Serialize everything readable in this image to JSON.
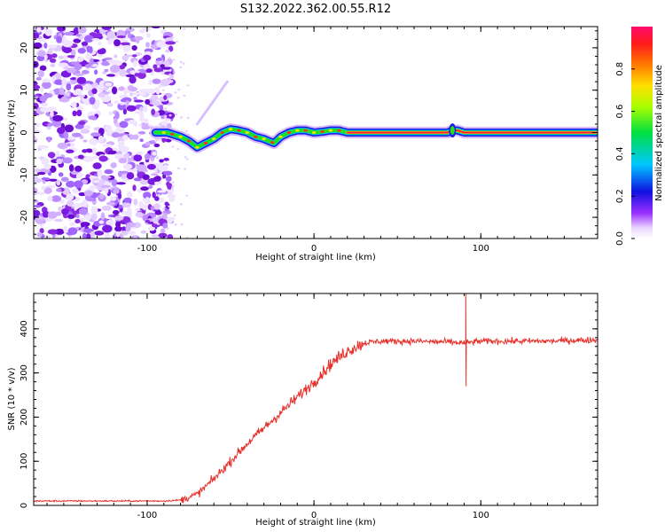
{
  "title": "S132.2022.362.00.55.R12",
  "colors": {
    "snr_line": "#e8302a",
    "scatter": "#8a2be2",
    "ridge_core": "#ff1a3c",
    "ridge_mid": "#22e01a",
    "ridge_edge": "#1a1ae0"
  },
  "chart_data": [
    {
      "type": "heatmap",
      "xlabel": "Height of straight line (km)",
      "ylabel": "Frequency (Hz)",
      "xlim": [
        -168,
        170
      ],
      "ylim": [
        -25,
        25
      ],
      "xticks": [
        -100,
        0,
        100
      ],
      "xtick_labels": [
        "-100",
        "0",
        "100"
      ],
      "yticks": [
        -20,
        -10,
        0,
        10,
        20
      ],
      "ytick_labels": [
        "-20",
        "-10",
        "0",
        "10",
        "20"
      ],
      "colorbar": {
        "label": "Normalized spectral amplitude",
        "range": [
          0,
          1
        ],
        "ticks": [
          0.0,
          0.2,
          0.4,
          0.6,
          0.8
        ],
        "tick_labels": [
          "0.0",
          "0.2",
          "0.4",
          "0.6",
          "0.8"
        ]
      },
      "ridge": {
        "x": [
          -95,
          -88,
          -80,
          -75,
          -70,
          -65,
          -60,
          -55,
          -50,
          -45,
          -40,
          -35,
          -30,
          -27,
          -24,
          -20,
          -15,
          -10,
          -5,
          0,
          5,
          10,
          15,
          20,
          40,
          60,
          80,
          83,
          86,
          90,
          120,
          170
        ],
        "y": [
          0,
          0,
          -1,
          -2,
          -3.5,
          -2.5,
          -1.5,
          0,
          0.8,
          0.5,
          0,
          -1,
          -1.5,
          -2,
          -2.5,
          -1,
          0,
          0.5,
          0.5,
          0,
          0.2,
          0.5,
          0.5,
          0,
          0,
          0,
          0,
          0.5,
          0.5,
          0,
          0,
          0
        ]
      }
    },
    {
      "type": "line",
      "xlabel": "Height of straight line (km)",
      "ylabel": "SNR (10 * v/v)",
      "xlim": [
        -168,
        170
      ],
      "ylim": [
        0,
        480
      ],
      "xticks": [
        -100,
        0,
        100
      ],
      "xtick_labels": [
        "-100",
        "0",
        "100"
      ],
      "yticks": [
        0,
        100,
        200,
        300,
        400
      ],
      "ytick_labels": [
        "0",
        "100",
        "200",
        "300",
        "400"
      ],
      "trend": {
        "x": [
          -168,
          -120,
          -90,
          -80,
          -70,
          -60,
          -50,
          -40,
          -30,
          -20,
          -10,
          0,
          10,
          20,
          30,
          40,
          60,
          80,
          90,
          100,
          120,
          140,
          170
        ],
        "y": [
          10,
          10,
          10,
          12,
          25,
          60,
          100,
          140,
          175,
          210,
          245,
          280,
          320,
          350,
          368,
          372,
          372,
          370,
          368,
          372,
          372,
          372,
          375
        ]
      },
      "spikes": {
        "x": [
          91,
          92
        ],
        "y": [
          480,
          270
        ]
      }
    }
  ]
}
